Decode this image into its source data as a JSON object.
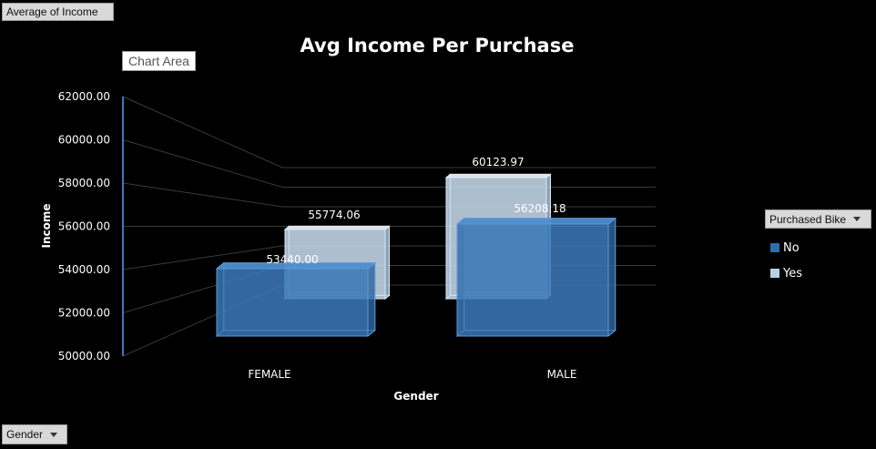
{
  "fields": {
    "value_field": "Average of Income",
    "axis_field": "Gender",
    "legend_field": "Purchased Bike"
  },
  "tooltip": "Chart Area",
  "colors": {
    "no": "#3a78b8",
    "yes": "#b8d0e6",
    "axis": "#4472c4"
  },
  "chart_data": {
    "type": "bar",
    "title": "Avg Income Per Purchase",
    "xlabel": "Gender",
    "ylabel": "Income",
    "categories": [
      "FEMALE",
      "MALE"
    ],
    "series": [
      {
        "name": "No",
        "values": [
          53440.0,
          56208.18
        ]
      },
      {
        "name": "Yes",
        "values": [
          55774.06,
          60123.97
        ]
      }
    ],
    "data_labels": {
      "no": [
        "53440.00",
        "56208.18"
      ],
      "yes": [
        "55774.06",
        "60123.97"
      ]
    },
    "ylim": [
      50000,
      62000
    ],
    "yticks": [
      "50000.00",
      "52000.00",
      "54000.00",
      "56000.00",
      "58000.00",
      "60000.00",
      "62000.00"
    ],
    "grid": true,
    "legend_position": "right"
  }
}
